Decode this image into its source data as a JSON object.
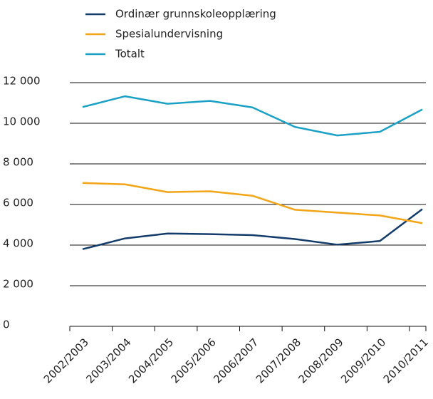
{
  "chart_data": {
    "type": "line",
    "categories": [
      "2002/2003",
      "2003/2004",
      "2004/2005",
      "2005/2006",
      "2006/2007",
      "2007/2008",
      "2008/2009",
      "2009/2010",
      "2010/2011"
    ],
    "series": [
      {
        "name": "Ordinær grunnskoleopplæring",
        "color": "#133c6b",
        "values": [
          3800,
          4330,
          4570,
          4540,
          4490,
          4300,
          4020,
          4200,
          5770
        ]
      },
      {
        "name": "Spesialundervisning",
        "color": "#f2a516",
        "values": [
          7060,
          6990,
          6610,
          6650,
          6430,
          5740,
          5600,
          5460,
          5080
        ]
      },
      {
        "name": "Totalt",
        "color": "#1ba1c6",
        "values": [
          10800,
          11330,
          10960,
          11100,
          10780,
          9820,
          9400,
          9580,
          10680
        ]
      }
    ],
    "ylim": [
      0,
      12000
    ],
    "yticks": [
      0,
      {
        "value": 2000,
        "label": "2 000"
      },
      {
        "value": 4000,
        "label": "4 000"
      },
      {
        "value": 6000,
        "label": "6 000"
      },
      {
        "value": 8000,
        "label": "8 000"
      },
      {
        "value": 10000,
        "label": "10 000"
      },
      {
        "value": 12000,
        "label": "12 000"
      }
    ],
    "grid": true,
    "legend": "top-left"
  }
}
